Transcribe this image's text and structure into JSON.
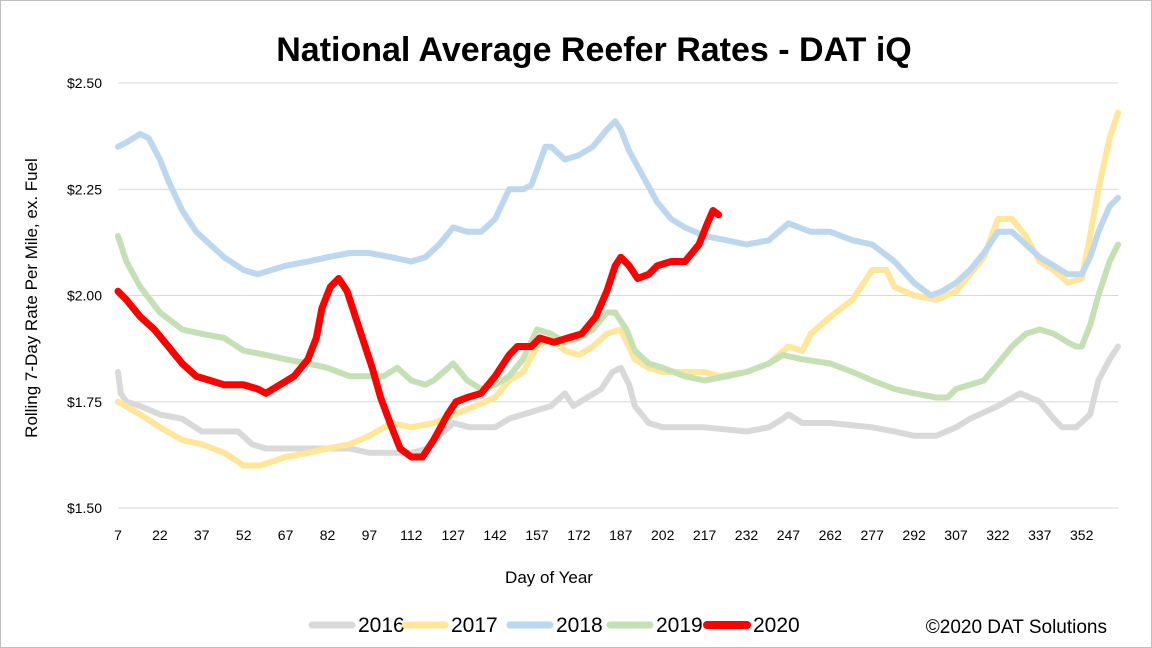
{
  "chart_data": {
    "type": "line",
    "title": "National Average Reefer Rates - DAT iQ",
    "xlabel": "Day of Year",
    "ylabel": "Rolling 7-Day Rate Per Mile, ex. Fuel",
    "xlim": [
      7,
      365
    ],
    "ylim": [
      1.5,
      2.5
    ],
    "x_ticks": [
      "7",
      "22",
      "37",
      "52",
      "67",
      "82",
      "97",
      "112",
      "127",
      "142",
      "157",
      "172",
      "187",
      "202",
      "217",
      "232",
      "247",
      "262",
      "277",
      "292",
      "307",
      "322",
      "337",
      "352"
    ],
    "y_ticks": [
      "$2.50",
      "$2.25",
      "$2.00",
      "$1.75",
      "$1.50"
    ],
    "legend_position": "bottom",
    "annotation": "©2020 DAT Solutions",
    "series": [
      {
        "name": "2016",
        "color": "#d9d9d9",
        "points": [
          [
            7,
            1.82
          ],
          [
            8,
            1.77
          ],
          [
            10,
            1.75
          ],
          [
            15,
            1.74
          ],
          [
            22,
            1.72
          ],
          [
            30,
            1.71
          ],
          [
            37,
            1.68
          ],
          [
            45,
            1.68
          ],
          [
            50,
            1.68
          ],
          [
            55,
            1.65
          ],
          [
            60,
            1.64
          ],
          [
            67,
            1.64
          ],
          [
            75,
            1.64
          ],
          [
            82,
            1.64
          ],
          [
            90,
            1.64
          ],
          [
            97,
            1.63
          ],
          [
            105,
            1.63
          ],
          [
            112,
            1.63
          ],
          [
            118,
            1.64
          ],
          [
            122,
            1.67
          ],
          [
            127,
            1.7
          ],
          [
            133,
            1.69
          ],
          [
            142,
            1.69
          ],
          [
            147,
            1.71
          ],
          [
            152,
            1.72
          ],
          [
            157,
            1.73
          ],
          [
            162,
            1.74
          ],
          [
            167,
            1.77
          ],
          [
            170,
            1.74
          ],
          [
            175,
            1.76
          ],
          [
            180,
            1.78
          ],
          [
            184,
            1.82
          ],
          [
            187,
            1.83
          ],
          [
            190,
            1.79
          ],
          [
            192,
            1.74
          ],
          [
            197,
            1.7
          ],
          [
            202,
            1.69
          ],
          [
            210,
            1.69
          ],
          [
            217,
            1.69
          ],
          [
            232,
            1.68
          ],
          [
            240,
            1.69
          ],
          [
            245,
            1.71
          ],
          [
            247,
            1.72
          ],
          [
            252,
            1.7
          ],
          [
            262,
            1.7
          ],
          [
            277,
            1.69
          ],
          [
            285,
            1.68
          ],
          [
            292,
            1.67
          ],
          [
            300,
            1.67
          ],
          [
            307,
            1.69
          ],
          [
            312,
            1.71
          ],
          [
            322,
            1.74
          ],
          [
            330,
            1.77
          ],
          [
            337,
            1.75
          ],
          [
            342,
            1.71
          ],
          [
            345,
            1.69
          ],
          [
            350,
            1.69
          ],
          [
            355,
            1.72
          ],
          [
            358,
            1.8
          ],
          [
            362,
            1.85
          ],
          [
            365,
            1.88
          ]
        ]
      },
      {
        "name": "2017",
        "color": "#ffe699",
        "points": [
          [
            7,
            1.75
          ],
          [
            15,
            1.72
          ],
          [
            22,
            1.69
          ],
          [
            30,
            1.66
          ],
          [
            37,
            1.65
          ],
          [
            45,
            1.63
          ],
          [
            52,
            1.6
          ],
          [
            58,
            1.6
          ],
          [
            67,
            1.62
          ],
          [
            75,
            1.63
          ],
          [
            82,
            1.64
          ],
          [
            90,
            1.65
          ],
          [
            97,
            1.67
          ],
          [
            105,
            1.7
          ],
          [
            112,
            1.69
          ],
          [
            120,
            1.7
          ],
          [
            127,
            1.72
          ],
          [
            135,
            1.74
          ],
          [
            142,
            1.76
          ],
          [
            147,
            1.8
          ],
          [
            152,
            1.82
          ],
          [
            157,
            1.88
          ],
          [
            162,
            1.9
          ],
          [
            167,
            1.87
          ],
          [
            172,
            1.86
          ],
          [
            177,
            1.88
          ],
          [
            182,
            1.91
          ],
          [
            187,
            1.92
          ],
          [
            192,
            1.85
          ],
          [
            197,
            1.83
          ],
          [
            202,
            1.82
          ],
          [
            217,
            1.82
          ],
          [
            222,
            1.81
          ],
          [
            232,
            1.82
          ],
          [
            240,
            1.84
          ],
          [
            247,
            1.88
          ],
          [
            252,
            1.87
          ],
          [
            255,
            1.91
          ],
          [
            262,
            1.95
          ],
          [
            270,
            1.99
          ],
          [
            277,
            2.06
          ],
          [
            282,
            2.06
          ],
          [
            285,
            2.02
          ],
          [
            292,
            2.0
          ],
          [
            300,
            1.99
          ],
          [
            307,
            2.01
          ],
          [
            312,
            2.05
          ],
          [
            317,
            2.09
          ],
          [
            322,
            2.18
          ],
          [
            327,
            2.18
          ],
          [
            332,
            2.14
          ],
          [
            337,
            2.08
          ],
          [
            342,
            2.06
          ],
          [
            347,
            2.03
          ],
          [
            352,
            2.04
          ],
          [
            355,
            2.14
          ],
          [
            358,
            2.25
          ],
          [
            362,
            2.37
          ],
          [
            365,
            2.43
          ]
        ]
      },
      {
        "name": "2018",
        "color": "#bdd7ee",
        "points": [
          [
            7,
            2.35
          ],
          [
            10,
            2.36
          ],
          [
            15,
            2.38
          ],
          [
            18,
            2.37
          ],
          [
            22,
            2.32
          ],
          [
            25,
            2.27
          ],
          [
            30,
            2.2
          ],
          [
            35,
            2.15
          ],
          [
            40,
            2.12
          ],
          [
            45,
            2.09
          ],
          [
            52,
            2.06
          ],
          [
            57,
            2.05
          ],
          [
            62,
            2.06
          ],
          [
            67,
            2.07
          ],
          [
            75,
            2.08
          ],
          [
            82,
            2.09
          ],
          [
            90,
            2.1
          ],
          [
            97,
            2.1
          ],
          [
            105,
            2.09
          ],
          [
            112,
            2.08
          ],
          [
            117,
            2.09
          ],
          [
            122,
            2.12
          ],
          [
            127,
            2.16
          ],
          [
            132,
            2.15
          ],
          [
            137,
            2.15
          ],
          [
            142,
            2.18
          ],
          [
            147,
            2.25
          ],
          [
            152,
            2.25
          ],
          [
            155,
            2.26
          ],
          [
            160,
            2.35
          ],
          [
            162,
            2.35
          ],
          [
            167,
            2.32
          ],
          [
            172,
            2.33
          ],
          [
            177,
            2.35
          ],
          [
            182,
            2.39
          ],
          [
            185,
            2.41
          ],
          [
            187,
            2.39
          ],
          [
            190,
            2.34
          ],
          [
            195,
            2.28
          ],
          [
            200,
            2.22
          ],
          [
            205,
            2.18
          ],
          [
            210,
            2.16
          ],
          [
            217,
            2.14
          ],
          [
            225,
            2.13
          ],
          [
            232,
            2.12
          ],
          [
            240,
            2.13
          ],
          [
            247,
            2.17
          ],
          [
            255,
            2.15
          ],
          [
            262,
            2.15
          ],
          [
            270,
            2.13
          ],
          [
            277,
            2.12
          ],
          [
            285,
            2.08
          ],
          [
            292,
            2.03
          ],
          [
            298,
            2.0
          ],
          [
            302,
            2.01
          ],
          [
            307,
            2.03
          ],
          [
            312,
            2.06
          ],
          [
            317,
            2.1
          ],
          [
            322,
            2.15
          ],
          [
            327,
            2.15
          ],
          [
            332,
            2.12
          ],
          [
            337,
            2.09
          ],
          [
            342,
            2.07
          ],
          [
            347,
            2.05
          ],
          [
            352,
            2.05
          ],
          [
            355,
            2.09
          ],
          [
            358,
            2.15
          ],
          [
            362,
            2.21
          ],
          [
            365,
            2.23
          ]
        ]
      },
      {
        "name": "2019",
        "color": "#c5e0b4",
        "points": [
          [
            7,
            2.14
          ],
          [
            10,
            2.08
          ],
          [
            15,
            2.02
          ],
          [
            22,
            1.96
          ],
          [
            30,
            1.92
          ],
          [
            37,
            1.91
          ],
          [
            45,
            1.9
          ],
          [
            52,
            1.87
          ],
          [
            60,
            1.86
          ],
          [
            67,
            1.85
          ],
          [
            75,
            1.84
          ],
          [
            82,
            1.83
          ],
          [
            90,
            1.81
          ],
          [
            97,
            1.81
          ],
          [
            102,
            1.81
          ],
          [
            107,
            1.83
          ],
          [
            112,
            1.8
          ],
          [
            117,
            1.79
          ],
          [
            120,
            1.8
          ],
          [
            127,
            1.84
          ],
          [
            132,
            1.8
          ],
          [
            137,
            1.78
          ],
          [
            142,
            1.79
          ],
          [
            147,
            1.81
          ],
          [
            152,
            1.85
          ],
          [
            157,
            1.92
          ],
          [
            162,
            1.91
          ],
          [
            167,
            1.89
          ],
          [
            172,
            1.9
          ],
          [
            177,
            1.92
          ],
          [
            182,
            1.96
          ],
          [
            185,
            1.96
          ],
          [
            189,
            1.92
          ],
          [
            192,
            1.87
          ],
          [
            197,
            1.84
          ],
          [
            202,
            1.83
          ],
          [
            210,
            1.81
          ],
          [
            217,
            1.8
          ],
          [
            225,
            1.81
          ],
          [
            232,
            1.82
          ],
          [
            240,
            1.84
          ],
          [
            245,
            1.86
          ],
          [
            252,
            1.85
          ],
          [
            262,
            1.84
          ],
          [
            270,
            1.82
          ],
          [
            277,
            1.8
          ],
          [
            285,
            1.78
          ],
          [
            292,
            1.77
          ],
          [
            300,
            1.76
          ],
          [
            304,
            1.76
          ],
          [
            307,
            1.78
          ],
          [
            312,
            1.79
          ],
          [
            317,
            1.8
          ],
          [
            322,
            1.84
          ],
          [
            327,
            1.88
          ],
          [
            332,
            1.91
          ],
          [
            337,
            1.92
          ],
          [
            342,
            1.91
          ],
          [
            347,
            1.89
          ],
          [
            350,
            1.88
          ],
          [
            352,
            1.88
          ],
          [
            355,
            1.93
          ],
          [
            358,
            2.0
          ],
          [
            362,
            2.08
          ],
          [
            365,
            2.12
          ]
        ]
      },
      {
        "name": "2020",
        "color": "#ff0000",
        "points": [
          [
            7,
            2.01
          ],
          [
            10,
            1.99
          ],
          [
            15,
            1.95
          ],
          [
            20,
            1.92
          ],
          [
            25,
            1.88
          ],
          [
            30,
            1.84
          ],
          [
            35,
            1.81
          ],
          [
            40,
            1.8
          ],
          [
            45,
            1.79
          ],
          [
            52,
            1.79
          ],
          [
            57,
            1.78
          ],
          [
            60,
            1.77
          ],
          [
            65,
            1.79
          ],
          [
            70,
            1.81
          ],
          [
            75,
            1.85
          ],
          [
            78,
            1.9
          ],
          [
            80,
            1.97
          ],
          [
            83,
            2.02
          ],
          [
            86,
            2.04
          ],
          [
            89,
            2.01
          ],
          [
            92,
            1.95
          ],
          [
            95,
            1.89
          ],
          [
            98,
            1.83
          ],
          [
            101,
            1.76
          ],
          [
            105,
            1.69
          ],
          [
            108,
            1.64
          ],
          [
            112,
            1.62
          ],
          [
            116,
            1.62
          ],
          [
            120,
            1.66
          ],
          [
            125,
            1.72
          ],
          [
            128,
            1.75
          ],
          [
            132,
            1.76
          ],
          [
            137,
            1.77
          ],
          [
            142,
            1.81
          ],
          [
            147,
            1.86
          ],
          [
            150,
            1.88
          ],
          [
            155,
            1.88
          ],
          [
            158,
            1.9
          ],
          [
            163,
            1.89
          ],
          [
            168,
            1.9
          ],
          [
            173,
            1.91
          ],
          [
            178,
            1.95
          ],
          [
            182,
            2.01
          ],
          [
            185,
            2.07
          ],
          [
            187,
            2.09
          ],
          [
            190,
            2.07
          ],
          [
            193,
            2.04
          ],
          [
            197,
            2.05
          ],
          [
            200,
            2.07
          ],
          [
            205,
            2.08
          ],
          [
            210,
            2.08
          ],
          [
            215,
            2.12
          ],
          [
            218,
            2.17
          ],
          [
            220,
            2.2
          ],
          [
            222,
            2.19
          ]
        ]
      }
    ]
  }
}
